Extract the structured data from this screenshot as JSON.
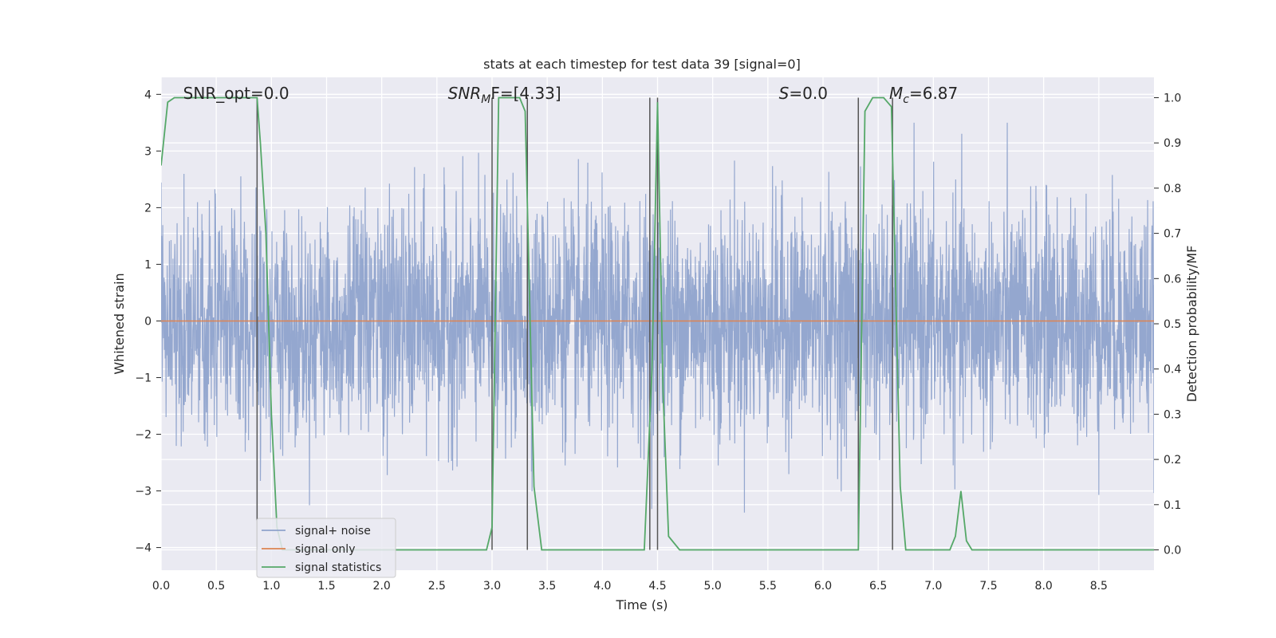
{
  "chart_data": {
    "type": "line",
    "title": "stats at each timestep for test data 39 [signal=0]",
    "xlabel": "Time (s)",
    "ylabel_left": "Whitened strain",
    "ylabel_right": "Detection probability/MF",
    "xlim": [
      0,
      9.0
    ],
    "ylim_left": [
      -4.4,
      4.3
    ],
    "ylim_right": [
      -0.045,
      1.045
    ],
    "xticks": [
      "0.0",
      "0.5",
      "1.0",
      "1.5",
      "2.0",
      "2.5",
      "3.0",
      "3.5",
      "4.0",
      "4.5",
      "5.0",
      "5.5",
      "6.0",
      "6.5",
      "7.0",
      "7.5",
      "8.0",
      "8.5"
    ],
    "xtick_values": [
      0,
      0.5,
      1.0,
      1.5,
      2.0,
      2.5,
      3.0,
      3.5,
      4.0,
      4.5,
      5.0,
      5.5,
      6.0,
      6.5,
      7.0,
      7.5,
      8.0,
      8.5
    ],
    "yticks_left": [
      "4",
      "3",
      "2",
      "1",
      "0",
      "−1",
      "−2",
      "−3",
      "−4"
    ],
    "ytick_values_left": [
      4,
      3,
      2,
      1,
      0,
      -1,
      -2,
      -3,
      -4
    ],
    "yticks_right": [
      "1.0",
      "0.9",
      "0.8",
      "0.7",
      "0.6",
      "0.5",
      "0.4",
      "0.3",
      "0.2",
      "0.1",
      "0.0"
    ],
    "ytick_values_right": [
      1.0,
      0.9,
      0.8,
      0.7,
      0.6,
      0.5,
      0.4,
      0.3,
      0.2,
      0.1,
      0.0
    ],
    "grid": true,
    "legend_position": "bottom-left",
    "legend": [
      "signal+ noise",
      "signal only",
      "signal statistics"
    ],
    "colors": {
      "noise": "#8fa3cc",
      "signal_only": "#dd8452",
      "statistics": "#55a868",
      "vlines": "#555555",
      "background": "#eaeaf2",
      "grid": "#ffffff"
    },
    "annotations": [
      {
        "base": "SNR_opt=0.0",
        "sub": "",
        "rest": "",
        "italic": false,
        "x": 0.2
      },
      {
        "base": "SNR",
        "sub": "M",
        "rest": "F=[4.33]",
        "italic": true,
        "x": 2.6
      },
      {
        "base": "S",
        "sub": "",
        "rest": "=0.0",
        "italic": true,
        "x": 5.6
      },
      {
        "base": "M",
        "sub": "c",
        "rest": "=6.87",
        "italic": true,
        "x": 6.6
      }
    ],
    "series": [
      {
        "name": "signal+ noise",
        "axis": "left",
        "envelope_max": 3.5,
        "envelope_min": -3.5,
        "note_values": "dense random noise, roughly within ±2 with peaks to ~±3.5"
      },
      {
        "name": "signal only",
        "axis": "left",
        "x": [
          0,
          9.0
        ],
        "y": [
          0,
          0
        ]
      },
      {
        "name": "signal statistics",
        "axis": "right",
        "x": [
          0.0,
          0.06,
          0.12,
          0.3,
          0.5,
          0.87,
          0.9,
          0.95,
          1.0,
          1.05,
          1.1,
          1.5,
          2.0,
          2.5,
          2.95,
          3.0,
          3.06,
          3.1,
          3.2,
          3.25,
          3.3,
          3.38,
          3.45,
          3.6,
          4.0,
          4.38,
          4.45,
          4.5,
          4.55,
          4.6,
          4.7,
          5.0,
          5.5,
          6.0,
          6.28,
          6.32,
          6.38,
          6.45,
          6.55,
          6.62,
          6.7,
          6.75,
          7.0,
          7.15,
          7.2,
          7.25,
          7.3,
          7.35,
          7.5,
          8.0,
          8.5,
          9.0
        ],
        "y": [
          0.85,
          0.99,
          1.0,
          1.0,
          1.0,
          1.0,
          0.9,
          0.7,
          0.3,
          0.05,
          0.0,
          0.0,
          0.0,
          0.0,
          0.0,
          0.05,
          1.0,
          1.0,
          1.0,
          1.0,
          0.97,
          0.14,
          0.0,
          0.0,
          0.0,
          0.0,
          0.4,
          0.99,
          0.35,
          0.03,
          0.0,
          0.0,
          0.0,
          0.0,
          0.0,
          0.0,
          0.97,
          1.0,
          1.0,
          0.98,
          0.14,
          0.0,
          0.0,
          0.0,
          0.03,
          0.13,
          0.02,
          0.0,
          0.0,
          0.0,
          0.0,
          0.0
        ]
      }
    ],
    "vlines_x": [
      0.87,
      3.0,
      3.32,
      4.43,
      4.5,
      6.32,
      6.63
    ]
  }
}
